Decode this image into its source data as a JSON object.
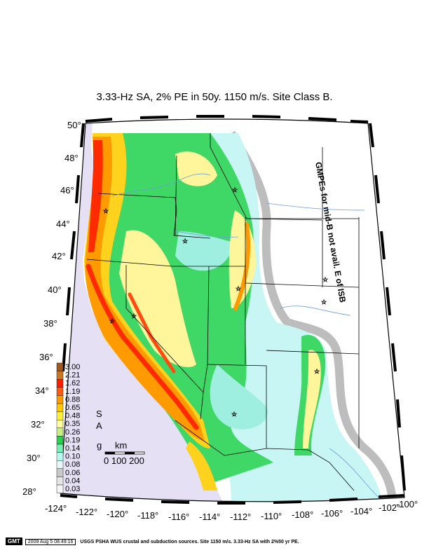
{
  "title": "3.33-Hz SA, 2% PE in 50y. 1150 m/s. Site Class B.",
  "annotation": "GMPEs for mid-B not avail. E of ISB",
  "lat_labels": [
    "50°",
    "48°",
    "46°",
    "44°",
    "42°",
    "40°",
    "38°",
    "36°",
    "34°",
    "32°",
    "30°",
    "28°"
  ],
  "lon_labels": [
    "-124°",
    "-122°",
    "-120°",
    "-118°",
    "-116°",
    "-114°",
    "-112°",
    "-110°",
    "-108°",
    "-106°",
    "-104°",
    "-102°",
    "-100°"
  ],
  "legend": {
    "values": [
      "3.00",
      "2.21",
      "1.62",
      "1.19",
      "0.88",
      "0.65",
      "0.48",
      "0.35",
      "0.26",
      "0.19",
      "0.14",
      "0.10",
      "0.08",
      "0.06",
      "0.04",
      "0.03"
    ],
    "colors": [
      "#a05a1e",
      "#c8781e",
      "#ff1e00",
      "#ff5a14",
      "#ff9b00",
      "#ffc800",
      "#fff03c",
      "#ffffa0",
      "#c8f080",
      "#28d250",
      "#78f0b4",
      "#b4f8f0",
      "#e8f8f8",
      "#c8c8c8",
      "#e6e6e6",
      "#f5f5f5"
    ],
    "units": "g",
    "quantity_top": "S",
    "quantity_bottom": "A"
  },
  "scale": {
    "label": "km",
    "ticks": "0 100 200"
  },
  "footer": {
    "logo": "GMT",
    "timestamp": "2009 Aug  5 08:49:16",
    "caption": "USGS PSHA WUS crustal and subduction sources.  Site 1150 m/s. 3.33-Hz SA with 2%50 yr PE."
  },
  "colors": {
    "ocean": "#e6e0f5",
    "land": "#ffffff",
    "frame": "#000000"
  }
}
